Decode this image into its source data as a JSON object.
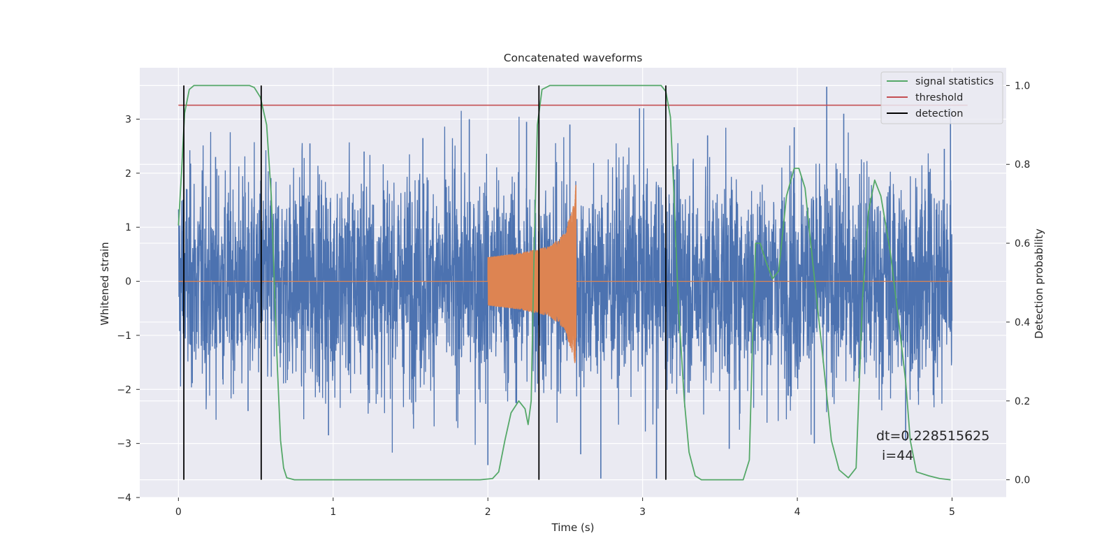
{
  "chart_data": {
    "type": "line",
    "title": "Concatenated waveforms",
    "xlabel": "Time (s)",
    "ylabel_left": "Whitened strain",
    "ylabel_right": "Detection probability",
    "xlim": [
      -0.25,
      5.35
    ],
    "ylim_left": [
      -4,
      3.95
    ],
    "ylim_right": [
      -0.045,
      1.045
    ],
    "xticks": [
      0,
      1,
      2,
      3,
      4,
      5
    ],
    "yticks_left": [
      -4,
      -3,
      -2,
      -1,
      0,
      1,
      2,
      3
    ],
    "yticks_right": [
      0.0,
      0.2,
      0.4,
      0.6,
      0.8,
      1.0
    ],
    "xtick_labels": [
      "0",
      "1",
      "2",
      "3",
      "4",
      "5"
    ],
    "yticks_left_labels": [
      "−4",
      "−3",
      "−2",
      "−1",
      "0",
      "1",
      "2",
      "3"
    ],
    "yticks_right_labels": [
      "0.0",
      "0.2",
      "0.4",
      "0.6",
      "0.8",
      "1.0"
    ],
    "grid": true,
    "legend_placement": "top-right",
    "colors": {
      "background": "#eaeaf2",
      "grid": "#ffffff",
      "strain": "#4c72b0",
      "waveform": "#dd8452",
      "signal_statistics": "#55a868",
      "threshold": "#c44e52",
      "detection": "#000000"
    },
    "series": [
      {
        "name": "",
        "axis": "left",
        "kind": "noise",
        "x_range": [
          0,
          5
        ],
        "typical_amplitude": 1.0,
        "peak_values": [
          {
            "x": 0.24,
            "y": 2.3
          },
          {
            "x": 0.85,
            "y": 2.55
          },
          {
            "x": 1.2,
            "y": 2.4
          },
          {
            "x": 1.58,
            "y": 2.65
          },
          {
            "x": 1.88,
            "y": 3.0
          },
          {
            "x": 2.25,
            "y": 2.95
          },
          {
            "x": 2.53,
            "y": 2.9
          },
          {
            "x": 2.98,
            "y": 3.2
          },
          {
            "x": 3.42,
            "y": 2.7
          },
          {
            "x": 3.98,
            "y": 2.85
          },
          {
            "x": 4.19,
            "y": 3.6
          },
          {
            "x": 4.3,
            "y": 3.1
          },
          {
            "x": 4.95,
            "y": 2.45
          },
          {
            "x": 4.99,
            "y": 3.2
          }
        ],
        "trough_values": [
          {
            "x": 0.45,
            "y": -2.4
          },
          {
            "x": 0.97,
            "y": -2.85
          },
          {
            "x": 2.0,
            "y": -3.4
          },
          {
            "x": 2.6,
            "y": -3.2
          },
          {
            "x": 2.73,
            "y": -3.65
          },
          {
            "x": 3.09,
            "y": -3.65
          },
          {
            "x": 3.56,
            "y": -3.1
          },
          {
            "x": 4.11,
            "y": -3.0
          },
          {
            "x": 4.7,
            "y": -2.95
          }
        ]
      },
      {
        "name": "",
        "axis": "left",
        "kind": "chirp",
        "chirp_start": 2.0,
        "chirp_end": 2.57,
        "points": [
          {
            "x": 2.0,
            "y": 0.45
          },
          {
            "x": 2.2,
            "y": 0.52
          },
          {
            "x": 2.4,
            "y": 0.65
          },
          {
            "x": 2.5,
            "y": 0.9
          },
          {
            "x": 2.55,
            "y": 1.3
          },
          {
            "x": 2.565,
            "y": 1.7
          },
          {
            "x": 2.57,
            "y": 0.0
          }
        ],
        "baseline": 0.0
      },
      {
        "name": "signal statistics",
        "axis": "right",
        "points": [
          [
            0.0,
            0.645
          ],
          [
            0.02,
            0.78
          ],
          [
            0.04,
            0.93
          ],
          [
            0.07,
            0.99
          ],
          [
            0.1,
            1.0
          ],
          [
            0.46,
            1.0
          ],
          [
            0.49,
            0.995
          ],
          [
            0.53,
            0.97
          ],
          [
            0.57,
            0.9
          ],
          [
            0.6,
            0.72
          ],
          [
            0.62,
            0.5
          ],
          [
            0.64,
            0.28
          ],
          [
            0.66,
            0.1
          ],
          [
            0.68,
            0.03
          ],
          [
            0.7,
            0.005
          ],
          [
            0.75,
            0.0
          ],
          [
            1.95,
            0.0
          ],
          [
            2.03,
            0.003
          ],
          [
            2.07,
            0.02
          ],
          [
            2.11,
            0.1
          ],
          [
            2.15,
            0.17
          ],
          [
            2.2,
            0.2
          ],
          [
            2.24,
            0.18
          ],
          [
            2.26,
            0.14
          ],
          [
            2.28,
            0.2
          ],
          [
            2.3,
            0.6
          ],
          [
            2.32,
            0.9
          ],
          [
            2.35,
            0.99
          ],
          [
            2.4,
            1.0
          ],
          [
            3.12,
            1.0
          ],
          [
            3.15,
            0.985
          ],
          [
            3.18,
            0.92
          ],
          [
            3.2,
            0.75
          ],
          [
            3.23,
            0.45
          ],
          [
            3.27,
            0.2
          ],
          [
            3.3,
            0.07
          ],
          [
            3.34,
            0.01
          ],
          [
            3.38,
            0.0
          ],
          [
            3.65,
            0.0
          ],
          [
            3.69,
            0.05
          ],
          [
            3.71,
            0.35
          ],
          [
            3.73,
            0.6
          ],
          [
            3.76,
            0.6
          ],
          [
            3.8,
            0.55
          ],
          [
            3.84,
            0.51
          ],
          [
            3.88,
            0.53
          ],
          [
            3.93,
            0.72
          ],
          [
            3.98,
            0.79
          ],
          [
            4.01,
            0.79
          ],
          [
            4.05,
            0.74
          ],
          [
            4.1,
            0.55
          ],
          [
            4.16,
            0.33
          ],
          [
            4.22,
            0.1
          ],
          [
            4.27,
            0.025
          ],
          [
            4.33,
            0.005
          ],
          [
            4.38,
            0.03
          ],
          [
            4.42,
            0.45
          ],
          [
            4.46,
            0.68
          ],
          [
            4.5,
            0.76
          ],
          [
            4.54,
            0.72
          ],
          [
            4.6,
            0.58
          ],
          [
            4.65,
            0.42
          ],
          [
            4.7,
            0.25
          ],
          [
            4.73,
            0.1
          ],
          [
            4.77,
            0.02
          ],
          [
            4.85,
            0.01
          ],
          [
            4.92,
            0.003
          ],
          [
            4.99,
            0.0
          ]
        ]
      },
      {
        "name": "threshold",
        "axis": "right",
        "points": [
          [
            0.0,
            0.95
          ],
          [
            5.1,
            0.95
          ]
        ]
      },
      {
        "name": "detection",
        "axis": "right",
        "kind": "vertical_lines",
        "x": [
          0.035,
          0.535,
          2.33,
          3.15
        ],
        "y_range": [
          0.0,
          1.0
        ]
      }
    ],
    "legend": {
      "entries": [
        "signal statistics",
        "threshold",
        "detection"
      ]
    },
    "annotations": {
      "dt": "dt=0.228515625",
      "i": "i=44"
    }
  }
}
